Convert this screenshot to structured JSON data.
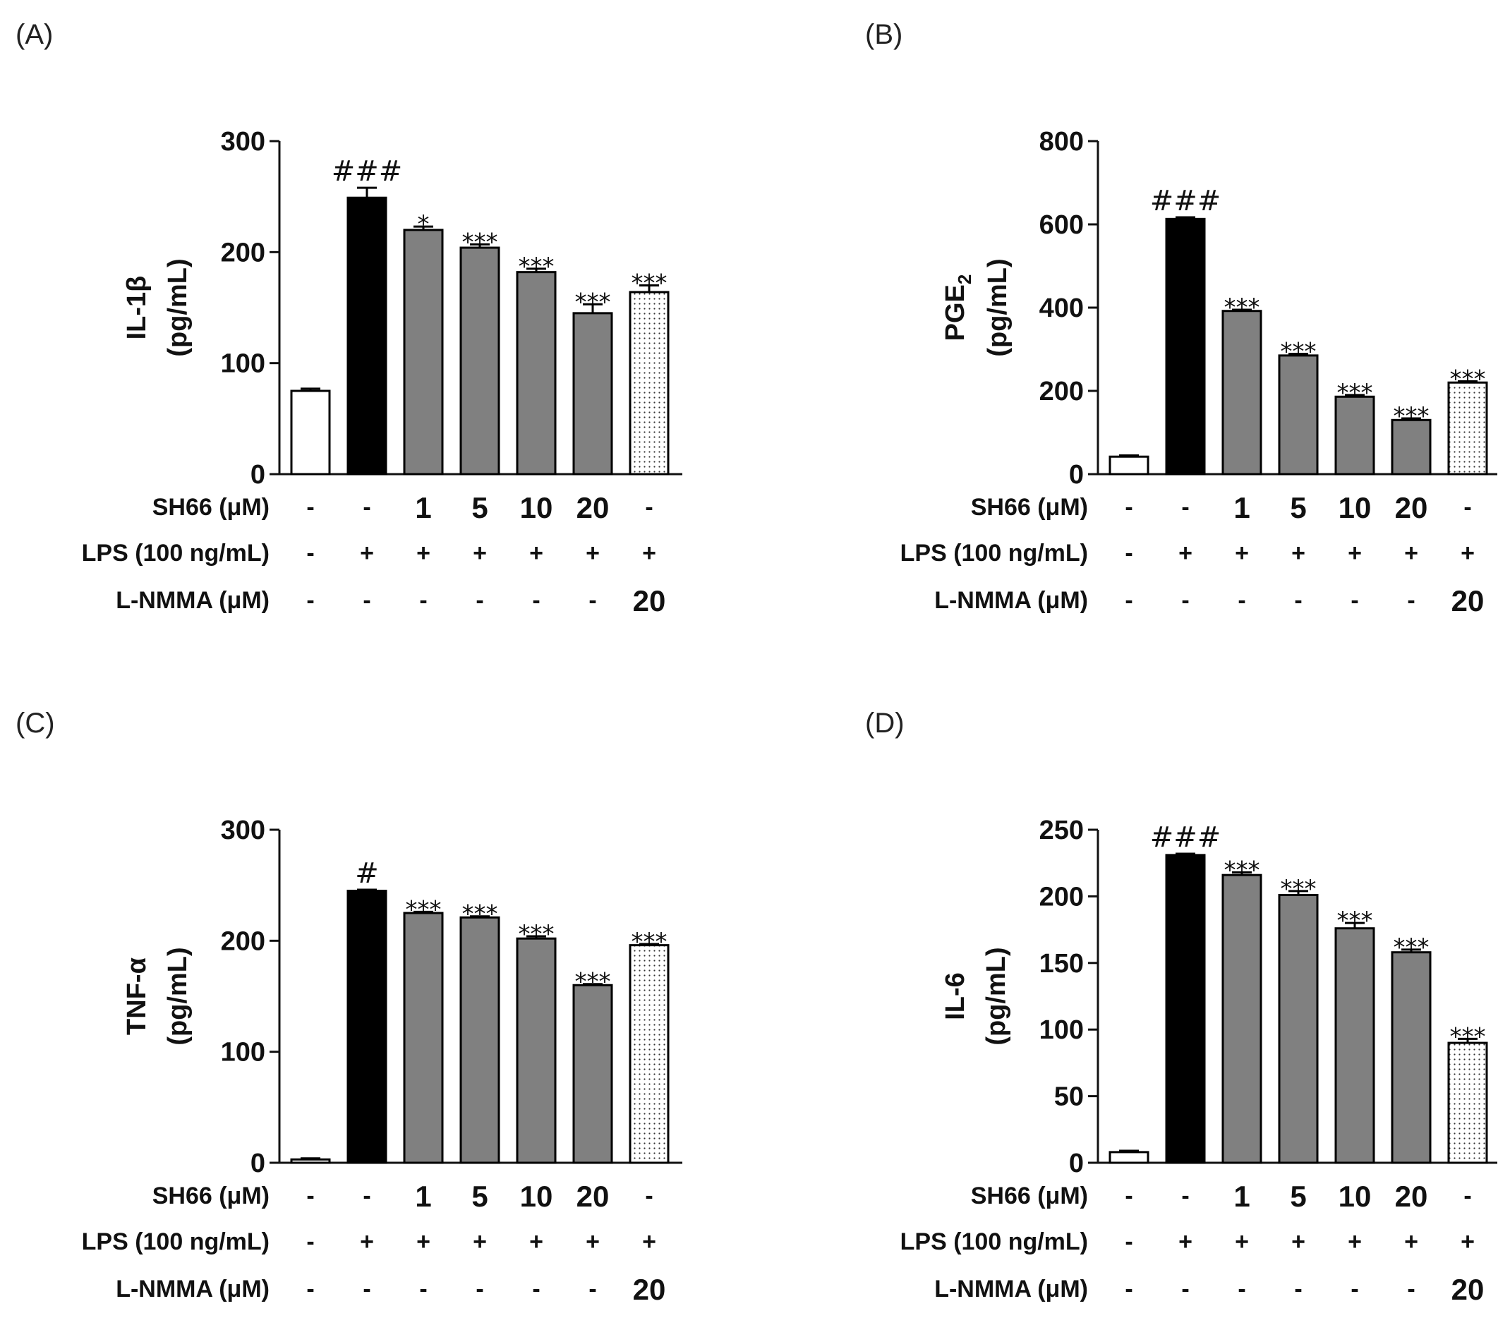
{
  "chart_data": [
    {
      "type": "bar",
      "panel": "(A)",
      "ylabel_line1": "IL-1β",
      "ylabel_line2": "(pg/mL)",
      "ylim": [
        0,
        300
      ],
      "yticks": [
        "0",
        "100",
        "200",
        "300"
      ],
      "ytick_values": [
        0,
        100,
        200,
        300
      ],
      "values": [
        75,
        249,
        220,
        204,
        182,
        145,
        164
      ],
      "errors": [
        2,
        9,
        3,
        3,
        3,
        8,
        6
      ],
      "sig_labels": [
        "",
        "###",
        "*",
        "***",
        "***",
        "***",
        "***"
      ],
      "fills": [
        "white",
        "black",
        "gray",
        "gray",
        "gray",
        "gray",
        "dotted"
      ]
    },
    {
      "type": "bar",
      "panel": "(B)",
      "ylabel_line1": "PGE",
      "ylabel_sub": "2",
      "ylabel_line2": "(pg/mL)",
      "ylim": [
        0,
        800
      ],
      "yticks": [
        "0",
        "200",
        "400",
        "600",
        "800"
      ],
      "ytick_values": [
        0,
        200,
        400,
        600,
        800
      ],
      "values": [
        42,
        613,
        392,
        285,
        186,
        130,
        220
      ],
      "errors": [
        3,
        4,
        3,
        4,
        4,
        4,
        3
      ],
      "sig_labels": [
        "",
        "###",
        "***",
        "***",
        "***",
        "***",
        "***"
      ],
      "fills": [
        "white",
        "black",
        "gray",
        "gray",
        "gray",
        "gray",
        "dotted"
      ]
    },
    {
      "type": "bar",
      "panel": "(C)",
      "ylabel_line1": "TNF-α",
      "ylabel_line2": "(pg/mL)",
      "ylim": [
        0,
        300
      ],
      "yticks": [
        "0",
        "100",
        "200",
        "300"
      ],
      "ytick_values": [
        0,
        100,
        200,
        300
      ],
      "values": [
        3,
        245,
        225,
        221,
        202,
        160,
        196
      ],
      "errors": [
        1,
        1,
        1,
        1,
        2,
        1,
        1
      ],
      "sig_labels": [
        "",
        "#",
        "***",
        "***",
        "***",
        "***",
        "***"
      ],
      "fills": [
        "white",
        "black",
        "gray",
        "gray",
        "gray",
        "gray",
        "dotted"
      ]
    },
    {
      "type": "bar",
      "panel": "(D)",
      "ylabel_line1": "IL-6",
      "ylabel_line2": "(pg/mL)",
      "ylim": [
        0,
        250
      ],
      "yticks": [
        "0",
        "50",
        "100",
        "150",
        "200",
        "250"
      ],
      "ytick_values": [
        0,
        50,
        100,
        150,
        200,
        250
      ],
      "values": [
        8,
        231,
        216,
        201,
        176,
        158,
        90
      ],
      "errors": [
        1,
        1,
        2,
        3,
        4,
        2,
        3
      ],
      "sig_labels": [
        "",
        "###",
        "***",
        "***",
        "***",
        "***",
        "***"
      ],
      "fills": [
        "white",
        "black",
        "gray",
        "gray",
        "gray",
        "gray",
        "dotted"
      ]
    }
  ],
  "conditions": {
    "rows": [
      {
        "label": "SH66 (μM)",
        "values": [
          "-",
          "-",
          "1",
          "5",
          "10",
          "20",
          "-"
        ]
      },
      {
        "label": "LPS (100 ng/mL)",
        "values": [
          "-",
          "+",
          "+",
          "+",
          "+",
          "+",
          "+"
        ]
      },
      {
        "label": "L-NMMA (μM)",
        "values": [
          "-",
          "-",
          "-",
          "-",
          "-",
          "-",
          "20"
        ]
      }
    ]
  },
  "colors": {
    "black_bar": "#000000",
    "gray_bar": "#808080",
    "white_bar": "#ffffff",
    "axis": "#111111"
  }
}
